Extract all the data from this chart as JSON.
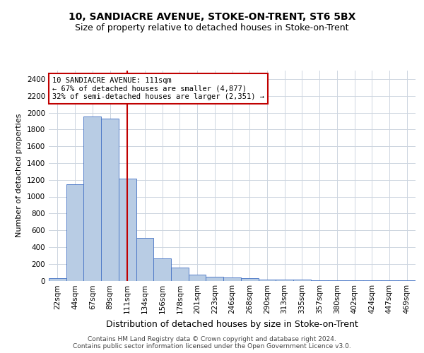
{
  "title": "10, SANDIACRE AVENUE, STOKE-ON-TRENT, ST6 5BX",
  "subtitle": "Size of property relative to detached houses in Stoke-on-Trent",
  "xlabel": "Distribution of detached houses by size in Stoke-on-Trent",
  "ylabel": "Number of detached properties",
  "categories": [
    "22sqm",
    "44sqm",
    "67sqm",
    "89sqm",
    "111sqm",
    "134sqm",
    "156sqm",
    "178sqm",
    "201sqm",
    "223sqm",
    "246sqm",
    "268sqm",
    "290sqm",
    "313sqm",
    "335sqm",
    "357sqm",
    "380sqm",
    "402sqm",
    "424sqm",
    "447sqm",
    "469sqm"
  ],
  "values": [
    30,
    1150,
    1950,
    1930,
    1215,
    510,
    265,
    155,
    75,
    45,
    40,
    30,
    15,
    10,
    10,
    5,
    2,
    2,
    2,
    2,
    2
  ],
  "bar_color": "#b8cce4",
  "bar_edge_color": "#4472c4",
  "reference_line_idx": 4,
  "reference_line_color": "#c00000",
  "ylim": [
    0,
    2500
  ],
  "yticks": [
    0,
    200,
    400,
    600,
    800,
    1000,
    1200,
    1400,
    1600,
    1800,
    2000,
    2200,
    2400
  ],
  "annotation_text": "10 SANDIACRE AVENUE: 111sqm\n← 67% of detached houses are smaller (4,877)\n32% of semi-detached houses are larger (2,351) →",
  "annotation_box_color": "#ffffff",
  "annotation_box_edge_color": "#c00000",
  "footer_text": "Contains HM Land Registry data © Crown copyright and database right 2024.\nContains public sector information licensed under the Open Government Licence v3.0.",
  "bg_color": "#ffffff",
  "grid_color": "#cdd5e0",
  "title_fontsize": 10,
  "subtitle_fontsize": 9,
  "ylabel_fontsize": 8,
  "xlabel_fontsize": 9,
  "tick_fontsize": 7.5,
  "annotation_fontsize": 7.5,
  "footer_fontsize": 6.5
}
